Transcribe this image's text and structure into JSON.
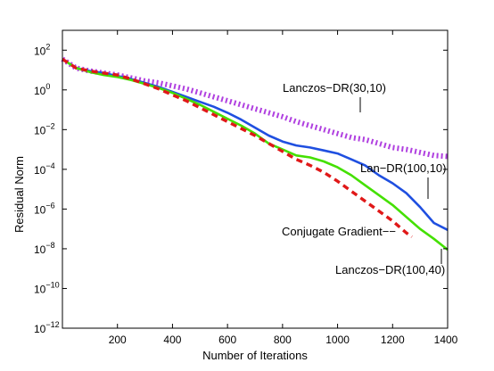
{
  "chart_data": {
    "type": "line",
    "title": "",
    "xlabel": "Number of Iterations",
    "ylabel": "Residual Norm",
    "xlim": [
      0,
      1400
    ],
    "ylim_exponents": [
      -12,
      3
    ],
    "yscale": "log",
    "x_ticks": [
      200,
      400,
      600,
      800,
      1000,
      1200,
      1400
    ],
    "y_ticks": [
      {
        "base": "10",
        "exp": "2"
      },
      {
        "base": "10",
        "exp": "0"
      },
      {
        "base": "10",
        "exp": "−2"
      },
      {
        "base": "10",
        "exp": "−4"
      },
      {
        "base": "10",
        "exp": "−6"
      },
      {
        "base": "10",
        "exp": "−8"
      },
      {
        "base": "10",
        "exp": "−10"
      },
      {
        "base": "10",
        "exp": "−12"
      }
    ],
    "grid": false,
    "legend": "none",
    "series": [
      {
        "key": "lanczos_dr_30_10",
        "label": "Lanczos−DR(30,10)",
        "color": "#b040e0",
        "style": "dotted-thick",
        "x": [
          0,
          50,
          100,
          150,
          200,
          250,
          300,
          350,
          400,
          450,
          500,
          550,
          600,
          650,
          700,
          750,
          800,
          850,
          900,
          950,
          1000,
          1050,
          1100,
          1150,
          1200,
          1250,
          1300,
          1350,
          1400
        ],
        "log10_y": [
          1.55,
          1.1,
          0.95,
          0.85,
          0.75,
          0.6,
          0.45,
          0.35,
          0.2,
          0.05,
          -0.15,
          -0.35,
          -0.55,
          -0.75,
          -0.95,
          -1.15,
          -1.35,
          -1.6,
          -1.8,
          -2.0,
          -2.2,
          -2.4,
          -2.5,
          -2.7,
          -2.9,
          -3.0,
          -3.15,
          -3.3,
          -3.35
        ]
      },
      {
        "key": "lan_dr_100_10",
        "label": "Lan−DR(100,10)",
        "color": "#1f4fe0",
        "style": "solid",
        "x": [
          0,
          50,
          100,
          150,
          200,
          250,
          300,
          350,
          400,
          450,
          500,
          550,
          600,
          650,
          700,
          750,
          800,
          850,
          900,
          950,
          1000,
          1050,
          1100,
          1150,
          1200,
          1250,
          1300,
          1350,
          1400
        ],
        "log10_y": [
          1.55,
          1.1,
          0.95,
          0.85,
          0.7,
          0.55,
          0.35,
          0.15,
          -0.1,
          -0.35,
          -0.6,
          -0.85,
          -1.15,
          -1.5,
          -1.9,
          -2.3,
          -2.6,
          -2.8,
          -2.9,
          -3.05,
          -3.2,
          -3.5,
          -3.8,
          -4.3,
          -4.7,
          -5.2,
          -5.9,
          -6.7,
          -7.05
        ]
      },
      {
        "key": "lanczos_dr_100_40",
        "label": "Lanczos−DR(100,40)",
        "color": "#44e000",
        "style": "solid",
        "x": [
          0,
          50,
          100,
          150,
          200,
          250,
          300,
          350,
          400,
          450,
          500,
          550,
          600,
          650,
          700,
          750,
          800,
          850,
          900,
          950,
          1000,
          1050,
          1100,
          1150,
          1200,
          1250,
          1300,
          1350,
          1400
        ],
        "log10_y": [
          1.55,
          1.1,
          0.9,
          0.75,
          0.65,
          0.5,
          0.3,
          0.1,
          -0.15,
          -0.45,
          -0.75,
          -1.1,
          -1.45,
          -1.8,
          -2.2,
          -2.7,
          -3.0,
          -3.3,
          -3.4,
          -3.6,
          -3.9,
          -4.3,
          -4.8,
          -5.3,
          -5.8,
          -6.4,
          -7.0,
          -7.5,
          -8.05
        ]
      },
      {
        "key": "conjugate_gradient",
        "label": "Conjugate Gradient",
        "color": "#e01818",
        "style": "dashed-thick",
        "x": [
          0,
          50,
          100,
          150,
          200,
          250,
          300,
          350,
          400,
          450,
          500,
          550,
          600,
          650,
          700,
          750,
          800,
          850,
          900,
          950,
          1000,
          1050,
          1100,
          1150,
          1200,
          1250,
          1270
        ],
        "log10_y": [
          1.55,
          1.1,
          0.95,
          0.85,
          0.75,
          0.55,
          0.3,
          0.05,
          -0.25,
          -0.55,
          -0.9,
          -1.25,
          -1.6,
          -1.95,
          -2.3,
          -2.7,
          -3.1,
          -3.5,
          -3.8,
          -4.15,
          -4.6,
          -5.1,
          -5.6,
          -6.1,
          -6.6,
          -7.2,
          -7.4
        ]
      }
    ],
    "annotations": [
      {
        "key": "lanczos_dr_30_10",
        "text": "Lanczos−DR(30,10)"
      },
      {
        "key": "lan_dr_100_10",
        "text": "Lan−DR(100,10)"
      },
      {
        "key": "conjugate_gradient",
        "text": "Conjugate Gradient−−"
      },
      {
        "key": "lanczos_dr_100_40",
        "text": "Lanczos−DR(100,40)"
      }
    ]
  }
}
